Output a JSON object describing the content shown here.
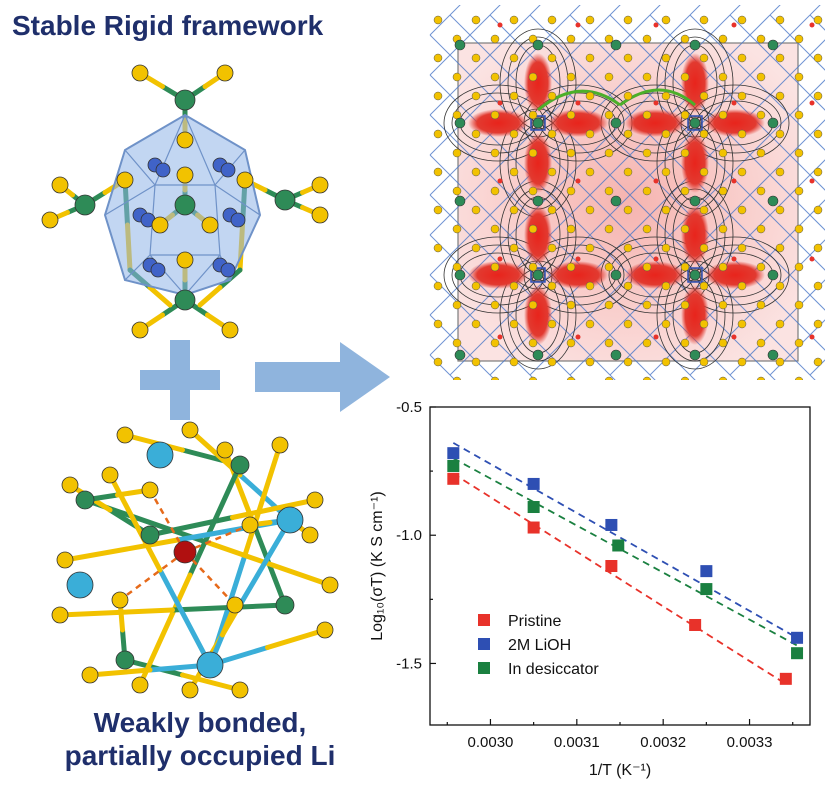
{
  "labels": {
    "top_title": "Stable Rigid framework",
    "bottom_line1": "Weakly bonded,",
    "bottom_line2": "partially occupied Li"
  },
  "colors": {
    "title": "#1f2f6b",
    "green_atom": "#2e8b57",
    "yellow_atom": "#f2c200",
    "cyan_atom": "#3aaed8",
    "red_atom": "#b01010",
    "blue_li": "#4063c8",
    "arrow": "#8fb4dd",
    "density": "#e0201a"
  },
  "icons": {
    "plus": "plus-icon",
    "arrow": "right-arrow-icon"
  },
  "chart_data": {
    "type": "scatter",
    "xlabel": "1/T (K⁻¹)",
    "ylabel": "Log₁₀(σT) (K S cm⁻¹)",
    "xlim": [
      0.00293,
      0.00337
    ],
    "ylim": [
      -1.74,
      -0.5
    ],
    "xticks": [
      0.003,
      0.0031,
      0.0032,
      0.0033
    ],
    "xtick_labels": [
      "0.0030",
      "0.0031",
      "0.0032",
      "0.0033"
    ],
    "yticks": [
      -0.5,
      -1.0,
      -1.5
    ],
    "ytick_labels": [
      "-0.5",
      "-1.0",
      "-1.5"
    ],
    "legend_position": "bottom-left",
    "fit_lines": "dashed",
    "series": [
      {
        "name": "Pristine",
        "color": "#e8322a",
        "x": [
          0.002957,
          0.00305,
          0.00314,
          0.003237,
          0.003342
        ],
        "y": [
          -0.78,
          -0.97,
          -1.12,
          -1.35,
          -1.56
        ],
        "fit": [
          [
            0.002957,
            -0.76
          ],
          [
            0.003342,
            -1.58
          ]
        ]
      },
      {
        "name": "2M LiOH",
        "color": "#2e4fb3",
        "x": [
          0.002957,
          0.00305,
          0.00314,
          0.00325,
          0.003355
        ],
        "y": [
          -0.68,
          -0.8,
          -0.96,
          -1.14,
          -1.4
        ],
        "fit": [
          [
            0.002957,
            -0.64
          ],
          [
            0.003355,
            -1.4
          ]
        ]
      },
      {
        "name": "In desiccator",
        "color": "#1a8040",
        "x": [
          0.002957,
          0.00305,
          0.003148,
          0.00325,
          0.003355
        ],
        "y": [
          -0.73,
          -0.89,
          -1.04,
          -1.21,
          -1.46
        ],
        "fit": [
          [
            0.002957,
            -0.7
          ],
          [
            0.003355,
            -1.43
          ]
        ]
      }
    ]
  }
}
